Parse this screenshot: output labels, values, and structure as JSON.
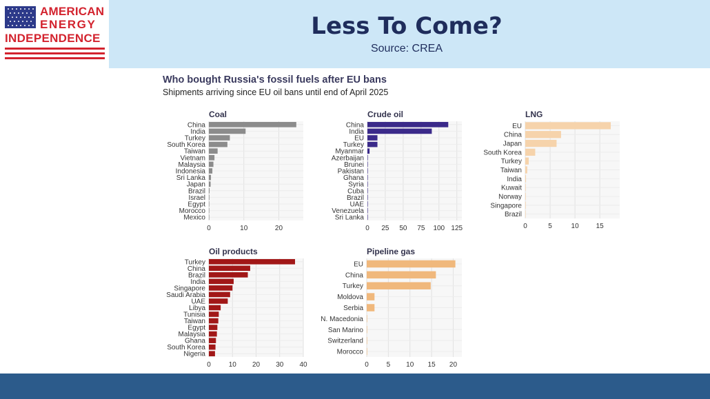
{
  "header": {
    "logo_line1": "AMERICAN",
    "logo_line2": "ENERGY",
    "logo_line3": "INDEPENDENCE",
    "title": "Less To Come?",
    "source": "Source: CREA"
  },
  "figure": {
    "title": "Who bought Russia's fossil fuels after EU bans",
    "subtitle": "Shipments arriving since EU oil bans until end of April 2025"
  },
  "colors": {
    "coal": "#8c8c8c",
    "crude": "#3b2a8a",
    "lng": "#f6d3ab",
    "oil_products": "#a11717",
    "pipeline": "#f0b87c",
    "header_bg": "#cde7f7",
    "title_text": "#1f2d5c",
    "logo_red": "#d3232e",
    "footer": "#2c5b8b"
  },
  "chart_data": [
    {
      "type": "bar",
      "orientation": "horizontal",
      "title": "Coal",
      "categories": [
        "China",
        "India",
        "Turkey",
        "South Korea",
        "Taiwan",
        "Vietnam",
        "Malaysia",
        "Indonesia",
        "Sri Lanka",
        "Japan",
        "Brazil",
        "Israel",
        "Egypt",
        "Morocco",
        "Mexico"
      ],
      "values": [
        25,
        10.5,
        6,
        5.3,
        2.5,
        1.6,
        1.3,
        1.0,
        0.6,
        0.5,
        0.2,
        0.15,
        0.1,
        0.1,
        0.05
      ],
      "xlim": [
        0,
        27
      ],
      "ticks": [
        0,
        10,
        20
      ],
      "grid": true
    },
    {
      "type": "bar",
      "orientation": "horizontal",
      "title": "Crude oil",
      "categories": [
        "China",
        "India",
        "EU",
        "Turkey",
        "Myanmar",
        "Azerbaijan",
        "Brunei",
        "Pakistan",
        "Ghana",
        "Syria",
        "Cuba",
        "Brazil",
        "UAE",
        "Venezuela",
        "Sri Lanka"
      ],
      "values": [
        113,
        90,
        14,
        14,
        3,
        0.5,
        0.4,
        0.4,
        0.3,
        0.3,
        0.2,
        0.2,
        0.2,
        0.1,
        0.1
      ],
      "xlim": [
        0,
        132
      ],
      "ticks": [
        0,
        25,
        50,
        75,
        100,
        125
      ],
      "grid": true
    },
    {
      "type": "bar",
      "orientation": "horizontal",
      "title": "LNG",
      "categories": [
        "EU",
        "China",
        "Japan",
        "South Korea",
        "Turkey",
        "Taiwan",
        "India",
        "Kuwait",
        "Norway",
        "Singapore",
        "Brazil"
      ],
      "values": [
        17.2,
        7.2,
        6.3,
        2.0,
        0.7,
        0.4,
        0.15,
        0.1,
        0.1,
        0.1,
        0.05
      ],
      "xlim": [
        0,
        19
      ],
      "ticks": [
        0,
        5,
        10,
        15
      ],
      "grid": true
    },
    {
      "type": "bar",
      "orientation": "horizontal",
      "title": "Oil products",
      "categories": [
        "Turkey",
        "China",
        "Brazil",
        "India",
        "Singapore",
        "Saudi Arabia",
        "UAE",
        "Libya",
        "Tunisia",
        "Taiwan",
        "Egypt",
        "Malaysia",
        "Ghana",
        "South Korea",
        "Nigeria"
      ],
      "values": [
        36.5,
        17.5,
        16.5,
        10.5,
        10,
        9,
        8,
        5,
        4.2,
        4,
        3.6,
        3.4,
        3,
        2.8,
        2.6
      ],
      "xlim": [
        0,
        40
      ],
      "ticks": [
        0,
        10,
        20,
        30,
        40
      ],
      "grid": true
    },
    {
      "type": "bar",
      "orientation": "horizontal",
      "title": "Pipeline gas",
      "categories": [
        "EU",
        "China",
        "Turkey",
        "Moldova",
        "Serbia",
        "N. Macedonia",
        "San Marino",
        "Switzerland",
        "Morocco"
      ],
      "values": [
        20.5,
        16,
        14.8,
        1.8,
        1.8,
        0.1,
        0.05,
        0.05,
        0.05
      ],
      "xlim": [
        0,
        22
      ],
      "ticks": [
        0,
        5,
        10,
        15,
        20
      ],
      "grid": true
    }
  ]
}
